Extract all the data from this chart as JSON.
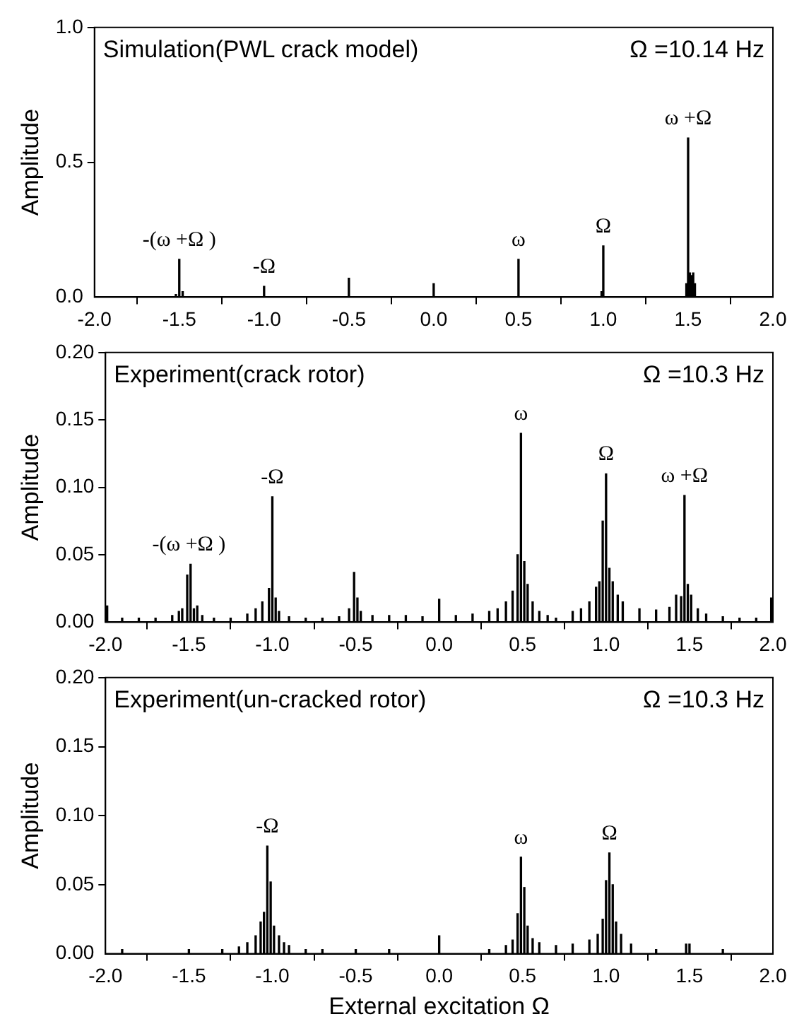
{
  "chart_data": [
    {
      "type": "bar",
      "title": "Simulation(PWL crack model)",
      "subtitle": "Ω =10.14 Hz",
      "ylabel": "Amplitude",
      "xlim": [
        -2,
        2
      ],
      "xticks": [
        {
          "value": -2,
          "label": "-2.0"
        },
        {
          "value": -1.5,
          "label": "-1.5"
        },
        {
          "value": -1,
          "label": "-1.0"
        },
        {
          "value": -0.5,
          "label": "-0.5"
        },
        {
          "value": 0,
          "label": "0.0"
        },
        {
          "value": 0.5,
          "label": "0.5"
        },
        {
          "value": 1,
          "label": "1.0"
        },
        {
          "value": 1.5,
          "label": "1.5"
        },
        {
          "value": 2,
          "label": "2.0"
        }
      ],
      "ylim": [
        0,
        1
      ],
      "yticks": [
        {
          "value": 0,
          "label": "0.0"
        },
        {
          "value": 0.5,
          "label": "0.5"
        },
        {
          "value": 1,
          "label": "1.0"
        }
      ],
      "x": [
        -1.52,
        -1.5,
        -1.48,
        -1.0,
        -0.5,
        0.0,
        0.5,
        0.99,
        1.0,
        1.49,
        1.5,
        1.51,
        1.52,
        1.53,
        1.54
      ],
      "series": [
        {
          "color": "#000000",
          "values": [
            0.01,
            0.14,
            0.02,
            0.04,
            0.07,
            0.05,
            0.14,
            0.02,
            0.19,
            0.05,
            0.59,
            0.09,
            0.08,
            0.09,
            0.05
          ]
        }
      ],
      "annotations": [
        {
          "text": "-(ω +Ω )",
          "x": -1.5,
          "y": 0.14
        },
        {
          "text": "-Ω",
          "x": -1.0,
          "y": 0.04
        },
        {
          "text": "ω",
          "x": 0.5,
          "y": 0.14
        },
        {
          "text": "Ω",
          "x": 1.0,
          "y": 0.19
        },
        {
          "text": "ω +Ω",
          "x": 1.5,
          "y": 0.59
        }
      ]
    },
    {
      "type": "bar",
      "title": "Experiment(crack rotor)",
      "subtitle": "Ω =10.3 Hz",
      "ylabel": "Amplitude",
      "xlim": [
        -2,
        2
      ],
      "xticks": [
        {
          "value": -2,
          "label": "-2.0"
        },
        {
          "value": -1.5,
          "label": "-1.5"
        },
        {
          "value": -1,
          "label": "-1.0"
        },
        {
          "value": -0.5,
          "label": "-0.5"
        },
        {
          "value": 0,
          "label": "0.0"
        },
        {
          "value": 0.5,
          "label": "0.5"
        },
        {
          "value": 1,
          "label": "1.0"
        },
        {
          "value": 1.5,
          "label": "1.5"
        },
        {
          "value": 2,
          "label": "2.0"
        }
      ],
      "ylim": [
        0,
        0.2
      ],
      "yticks": [
        {
          "value": 0,
          "label": "0.00"
        },
        {
          "value": 0.05,
          "label": "0.05"
        },
        {
          "value": 0.1,
          "label": "0.10"
        },
        {
          "value": 0.15,
          "label": "0.15"
        },
        {
          "value": 0.2,
          "label": "0.20"
        }
      ],
      "x": [
        -1.99,
        -1.9,
        -1.8,
        -1.7,
        -1.6,
        -1.56,
        -1.54,
        -1.51,
        -1.49,
        -1.47,
        -1.45,
        -1.42,
        -1.35,
        -1.25,
        -1.15,
        -1.1,
        -1.06,
        -1.02,
        -1.0,
        -0.98,
        -0.96,
        -0.9,
        -0.8,
        -0.7,
        -0.6,
        -0.54,
        -0.51,
        -0.49,
        -0.47,
        -0.4,
        -0.3,
        -0.2,
        -0.1,
        0.0,
        0.1,
        0.2,
        0.3,
        0.35,
        0.4,
        0.44,
        0.47,
        0.49,
        0.51,
        0.53,
        0.56,
        0.6,
        0.65,
        0.7,
        0.8,
        0.85,
        0.9,
        0.94,
        0.96,
        0.98,
        1.0,
        1.02,
        1.04,
        1.07,
        1.1,
        1.2,
        1.3,
        1.38,
        1.42,
        1.45,
        1.47,
        1.49,
        1.51,
        1.55,
        1.6,
        1.7,
        1.8,
        1.9,
        1.99
      ],
      "series": [
        {
          "color": "#000000",
          "values": [
            0.012,
            0.003,
            0.003,
            0.003,
            0.005,
            0.008,
            0.01,
            0.035,
            0.043,
            0.01,
            0.012,
            0.005,
            0.003,
            0.003,
            0.006,
            0.01,
            0.015,
            0.025,
            0.093,
            0.018,
            0.008,
            0.004,
            0.003,
            0.003,
            0.004,
            0.01,
            0.037,
            0.018,
            0.008,
            0.005,
            0.005,
            0.005,
            0.004,
            0.017,
            0.005,
            0.006,
            0.008,
            0.01,
            0.015,
            0.023,
            0.05,
            0.14,
            0.045,
            0.028,
            0.015,
            0.008,
            0.005,
            0.003,
            0.008,
            0.01,
            0.015,
            0.026,
            0.03,
            0.075,
            0.11,
            0.04,
            0.03,
            0.02,
            0.015,
            0.01,
            0.009,
            0.011,
            0.02,
            0.019,
            0.094,
            0.028,
            0.02,
            0.01,
            0.006,
            0.004,
            0.003,
            0.003,
            0.018
          ]
        }
      ],
      "annotations": [
        {
          "text": "-(ω +Ω )",
          "x": -1.5,
          "y": 0.043
        },
        {
          "text": "-Ω",
          "x": -1.0,
          "y": 0.093
        },
        {
          "text": "ω",
          "x": 0.49,
          "y": 0.14
        },
        {
          "text": "Ω",
          "x": 1.0,
          "y": 0.11
        },
        {
          "text": "ω +Ω",
          "x": 1.47,
          "y": 0.094
        }
      ]
    },
    {
      "type": "bar",
      "title": "Experiment(un-cracked rotor)",
      "subtitle": "Ω =10.3 Hz",
      "ylabel": "Amplitude",
      "xlabel": "External excitation Ω",
      "xlim": [
        -2,
        2
      ],
      "xticks": [
        {
          "value": -2,
          "label": "-2.0"
        },
        {
          "value": -1.5,
          "label": "-1.5"
        },
        {
          "value": -1,
          "label": "-1.0"
        },
        {
          "value": -0.5,
          "label": "-0.5"
        },
        {
          "value": 0,
          "label": "0.0"
        },
        {
          "value": 0.5,
          "label": "0.5"
        },
        {
          "value": 1,
          "label": "1.0"
        },
        {
          "value": 1.5,
          "label": "1.5"
        },
        {
          "value": 2,
          "label": "2.0"
        }
      ],
      "ylim": [
        0,
        0.2
      ],
      "yticks": [
        {
          "value": 0,
          "label": "0.00"
        },
        {
          "value": 0.05,
          "label": "0.05"
        },
        {
          "value": 0.1,
          "label": "0.10"
        },
        {
          "value": 0.15,
          "label": "0.15"
        },
        {
          "value": 0.2,
          "label": "0.20"
        }
      ],
      "x": [
        -1.9,
        -1.5,
        -1.3,
        -1.2,
        -1.15,
        -1.1,
        -1.07,
        -1.05,
        -1.03,
        -1.01,
        -0.99,
        -0.96,
        -0.93,
        -0.9,
        -0.8,
        -0.7,
        -0.5,
        -0.3,
        0.0,
        0.3,
        0.4,
        0.44,
        0.47,
        0.49,
        0.51,
        0.53,
        0.56,
        0.6,
        0.7,
        0.8,
        0.9,
        0.95,
        0.98,
        1.0,
        1.02,
        1.04,
        1.06,
        1.09,
        1.15,
        1.3,
        1.48,
        1.5,
        1.7
      ],
      "series": [
        {
          "color": "#000000",
          "values": [
            0.003,
            0.003,
            0.003,
            0.005,
            0.008,
            0.013,
            0.023,
            0.03,
            0.078,
            0.052,
            0.02,
            0.013,
            0.008,
            0.006,
            0.003,
            0.003,
            0.003,
            0.003,
            0.013,
            0.003,
            0.006,
            0.01,
            0.029,
            0.07,
            0.048,
            0.02,
            0.011,
            0.008,
            0.006,
            0.007,
            0.01,
            0.014,
            0.025,
            0.053,
            0.073,
            0.05,
            0.023,
            0.014,
            0.007,
            0.003,
            0.007,
            0.007,
            0.003
          ]
        }
      ],
      "annotations": [
        {
          "text": "-Ω",
          "x": -1.03,
          "y": 0.078
        },
        {
          "text": "ω",
          "x": 0.49,
          "y": 0.07
        },
        {
          "text": "Ω",
          "x": 1.02,
          "y": 0.073
        }
      ]
    }
  ]
}
